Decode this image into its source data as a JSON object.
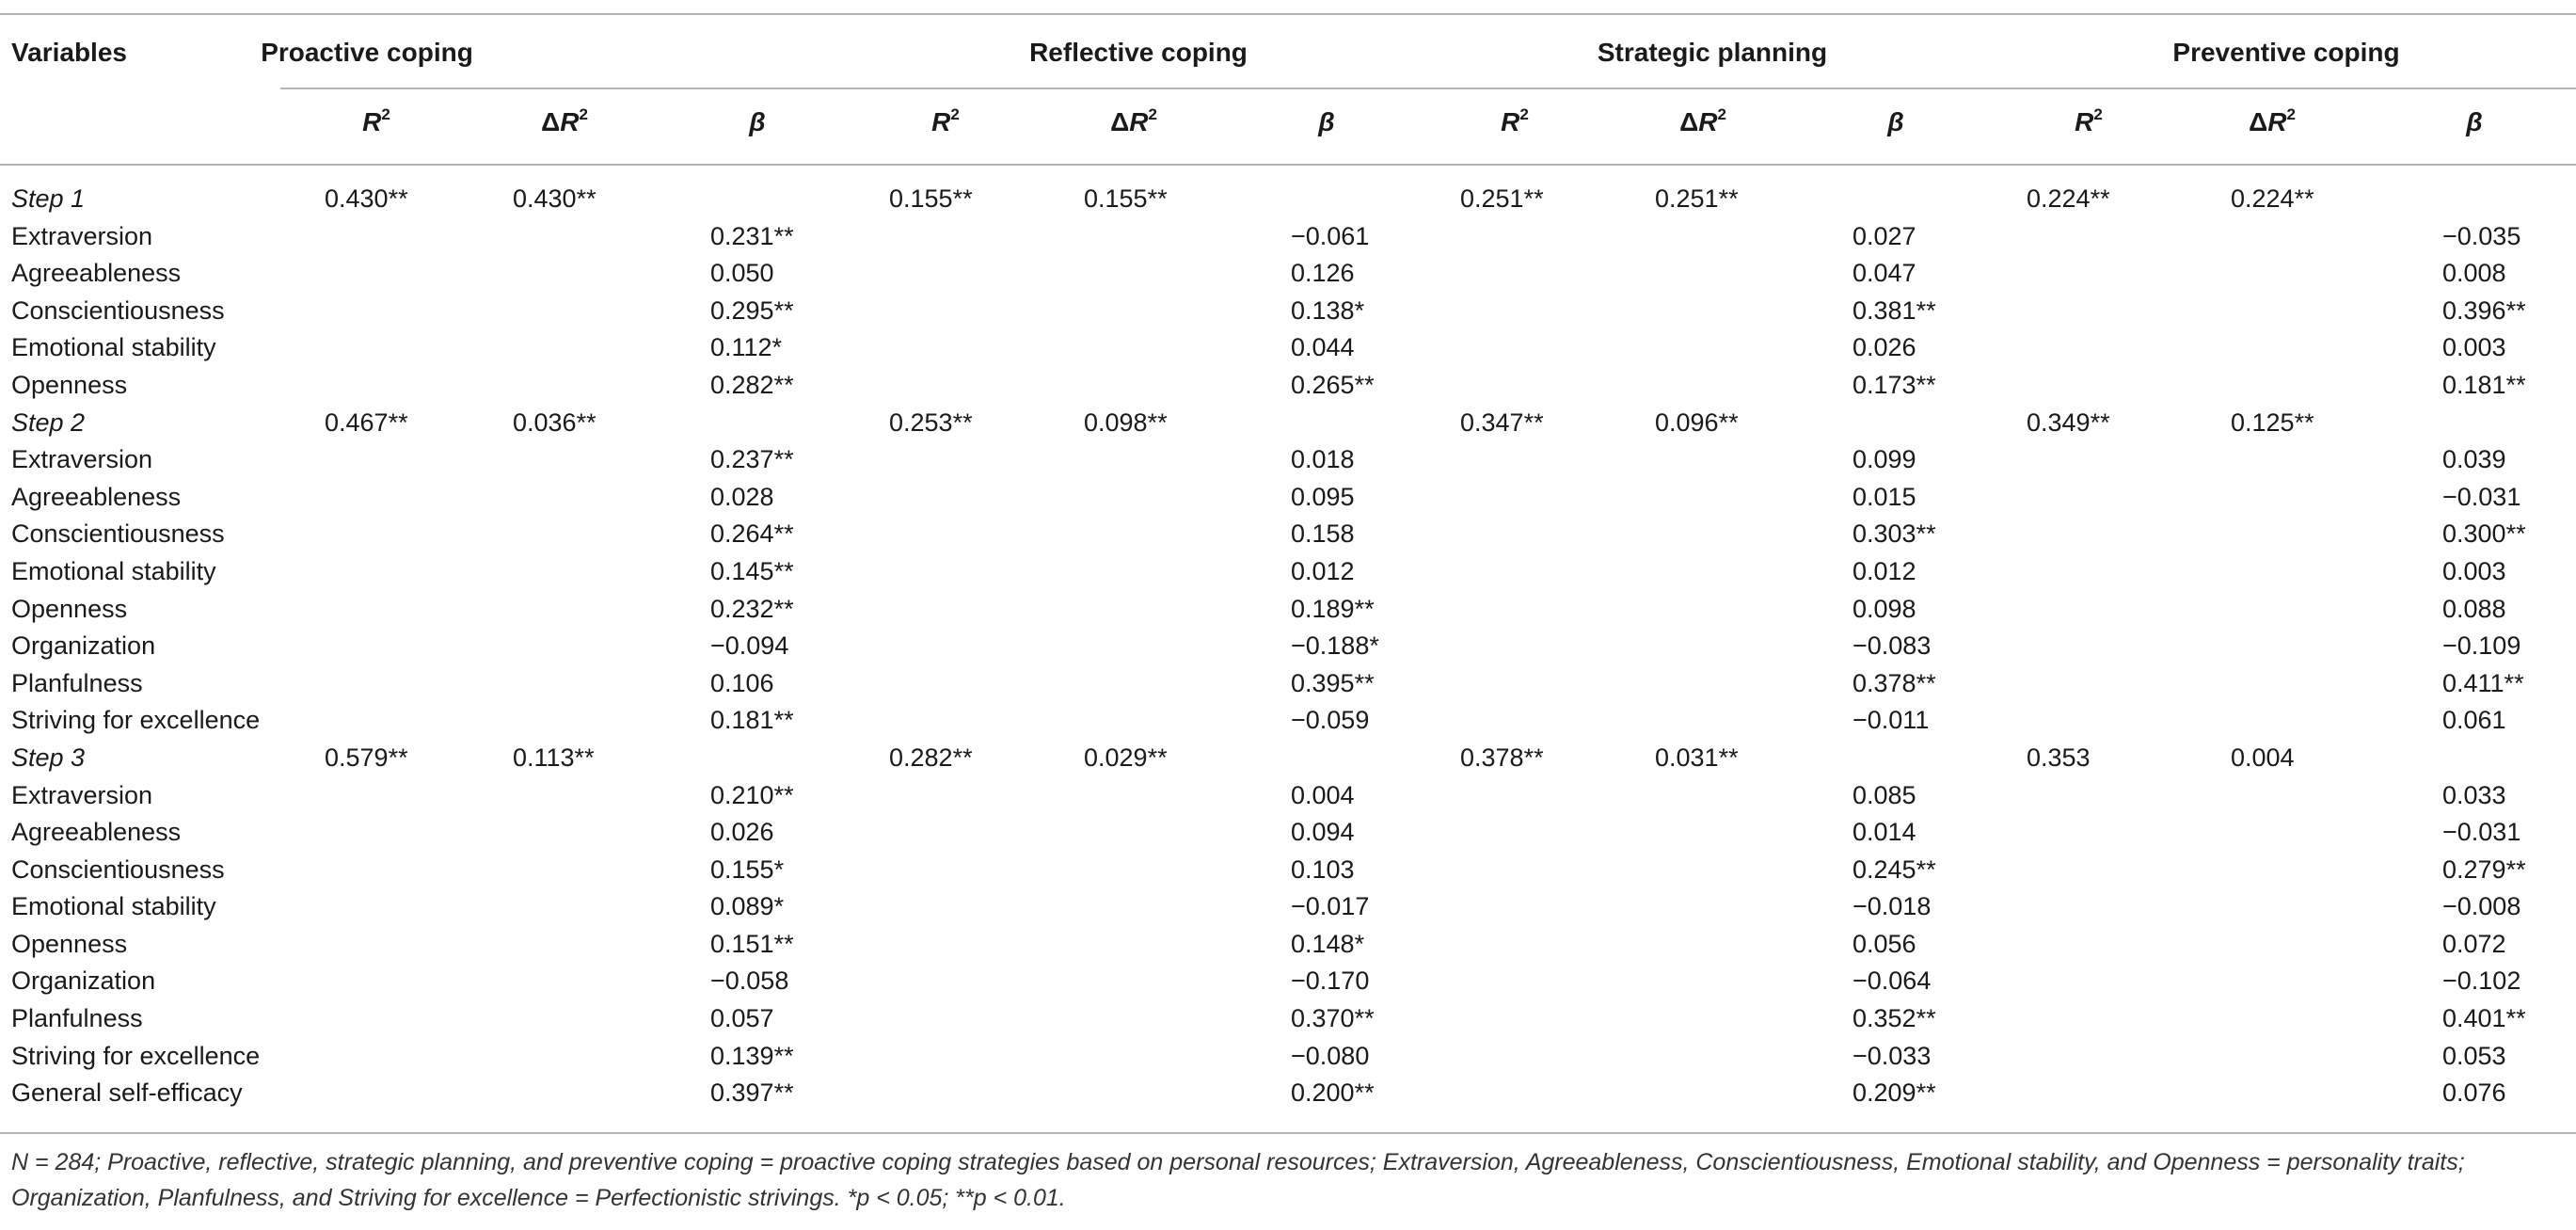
{
  "header": {
    "variables_label": "Variables",
    "groups": [
      {
        "title": "Proactive coping",
        "sub": [
          "R2",
          "ΔR2",
          "β"
        ]
      },
      {
        "title": "Reflective coping",
        "sub": [
          "R2",
          "ΔR2",
          "β"
        ]
      },
      {
        "title": "Strategic planning",
        "sub": [
          "R2",
          "ΔR2",
          "β"
        ]
      },
      {
        "title": "Preventive coping",
        "sub": [
          "R2",
          "ΔR2",
          "β"
        ]
      }
    ]
  },
  "rows": [
    {
      "label": "Step 1",
      "step": true,
      "cells": [
        "0.430**",
        "0.430**",
        "",
        "0.155**",
        "0.155**",
        "",
        "0.251**",
        "0.251**",
        "",
        "0.224**",
        "0.224**",
        ""
      ]
    },
    {
      "label": "Extraversion",
      "step": false,
      "cells": [
        "",
        "",
        "0.231**",
        "",
        "",
        "−0.061",
        "",
        "",
        "0.027",
        "",
        "",
        "−0.035"
      ]
    },
    {
      "label": "Agreeableness",
      "step": false,
      "cells": [
        "",
        "",
        "0.050",
        "",
        "",
        "0.126",
        "",
        "",
        "0.047",
        "",
        "",
        "0.008"
      ]
    },
    {
      "label": "Conscientiousness",
      "step": false,
      "cells": [
        "",
        "",
        "0.295**",
        "",
        "",
        "0.138*",
        "",
        "",
        "0.381**",
        "",
        "",
        "0.396**"
      ]
    },
    {
      "label": "Emotional stability",
      "step": false,
      "cells": [
        "",
        "",
        "0.112*",
        "",
        "",
        "0.044",
        "",
        "",
        "0.026",
        "",
        "",
        "0.003"
      ]
    },
    {
      "label": "Openness",
      "step": false,
      "cells": [
        "",
        "",
        "0.282**",
        "",
        "",
        "0.265**",
        "",
        "",
        "0.173**",
        "",
        "",
        "0.181**"
      ]
    },
    {
      "label": "Step 2",
      "step": true,
      "cells": [
        "0.467**",
        "0.036**",
        "",
        "0.253**",
        "0.098**",
        "",
        "0.347**",
        "0.096**",
        "",
        "0.349**",
        "0.125**",
        ""
      ]
    },
    {
      "label": "Extraversion",
      "step": false,
      "cells": [
        "",
        "",
        "0.237**",
        "",
        "",
        "0.018",
        "",
        "",
        "0.099",
        "",
        "",
        "0.039"
      ]
    },
    {
      "label": "Agreeableness",
      "step": false,
      "cells": [
        "",
        "",
        "0.028",
        "",
        "",
        "0.095",
        "",
        "",
        "0.015",
        "",
        "",
        "−0.031"
      ]
    },
    {
      "label": "Conscientiousness",
      "step": false,
      "cells": [
        "",
        "",
        "0.264**",
        "",
        "",
        "0.158",
        "",
        "",
        "0.303**",
        "",
        "",
        "0.300**"
      ]
    },
    {
      "label": "Emotional stability",
      "step": false,
      "cells": [
        "",
        "",
        "0.145**",
        "",
        "",
        "0.012",
        "",
        "",
        "0.012",
        "",
        "",
        "0.003"
      ]
    },
    {
      "label": "Openness",
      "step": false,
      "cells": [
        "",
        "",
        "0.232**",
        "",
        "",
        "0.189**",
        "",
        "",
        "0.098",
        "",
        "",
        "0.088"
      ]
    },
    {
      "label": "Organization",
      "step": false,
      "cells": [
        "",
        "",
        "−0.094",
        "",
        "",
        "−0.188*",
        "",
        "",
        "−0.083",
        "",
        "",
        "−0.109"
      ]
    },
    {
      "label": "Planfulness",
      "step": false,
      "cells": [
        "",
        "",
        "0.106",
        "",
        "",
        "0.395**",
        "",
        "",
        "0.378**",
        "",
        "",
        "0.411**"
      ]
    },
    {
      "label": "Striving for excellence",
      "step": false,
      "cells": [
        "",
        "",
        "0.181**",
        "",
        "",
        "−0.059",
        "",
        "",
        "−0.011",
        "",
        "",
        "0.061"
      ]
    },
    {
      "label": "Step 3",
      "step": true,
      "cells": [
        "0.579**",
        "0.113**",
        "",
        "0.282**",
        "0.029**",
        "",
        "0.378**",
        "0.031**",
        "",
        "0.353",
        "0.004",
        ""
      ]
    },
    {
      "label": "Extraversion",
      "step": false,
      "cells": [
        "",
        "",
        "0.210**",
        "",
        "",
        "0.004",
        "",
        "",
        "0.085",
        "",
        "",
        "0.033"
      ]
    },
    {
      "label": "Agreeableness",
      "step": false,
      "cells": [
        "",
        "",
        "0.026",
        "",
        "",
        "0.094",
        "",
        "",
        "0.014",
        "",
        "",
        "−0.031"
      ]
    },
    {
      "label": "Conscientiousness",
      "step": false,
      "cells": [
        "",
        "",
        "0.155*",
        "",
        "",
        "0.103",
        "",
        "",
        "0.245**",
        "",
        "",
        "0.279**"
      ]
    },
    {
      "label": "Emotional stability",
      "step": false,
      "cells": [
        "",
        "",
        "0.089*",
        "",
        "",
        "−0.017",
        "",
        "",
        "−0.018",
        "",
        "",
        "−0.008"
      ]
    },
    {
      "label": "Openness",
      "step": false,
      "cells": [
        "",
        "",
        "0.151**",
        "",
        "",
        "0.148*",
        "",
        "",
        "0.056",
        "",
        "",
        "0.072"
      ]
    },
    {
      "label": "Organization",
      "step": false,
      "cells": [
        "",
        "",
        "−0.058",
        "",
        "",
        "−0.170",
        "",
        "",
        "−0.064",
        "",
        "",
        "−0.102"
      ]
    },
    {
      "label": "Planfulness",
      "step": false,
      "cells": [
        "",
        "",
        "0.057",
        "",
        "",
        "0.370**",
        "",
        "",
        "0.352**",
        "",
        "",
        "0.401**"
      ]
    },
    {
      "label": "Striving for excellence",
      "step": false,
      "cells": [
        "",
        "",
        "0.139**",
        "",
        "",
        "−0.080",
        "",
        "",
        "−0.033",
        "",
        "",
        "0.053"
      ]
    },
    {
      "label": "General self-efficacy",
      "step": false,
      "cells": [
        "",
        "",
        "0.397**",
        "",
        "",
        "0.200**",
        "",
        "",
        "0.209**",
        "",
        "",
        "0.076"
      ]
    }
  ],
  "note": "N = 284; Proactive, reflective, strategic planning, and preventive coping = proactive coping strategies based on personal resources; Extraversion, Agreeableness, Conscientiousness, Emotional stability, and Openness = personality traits; Organization, Planfulness, and Striving for excellence = Perfectionistic strivings. *p < 0.05; **p < 0.01."
}
